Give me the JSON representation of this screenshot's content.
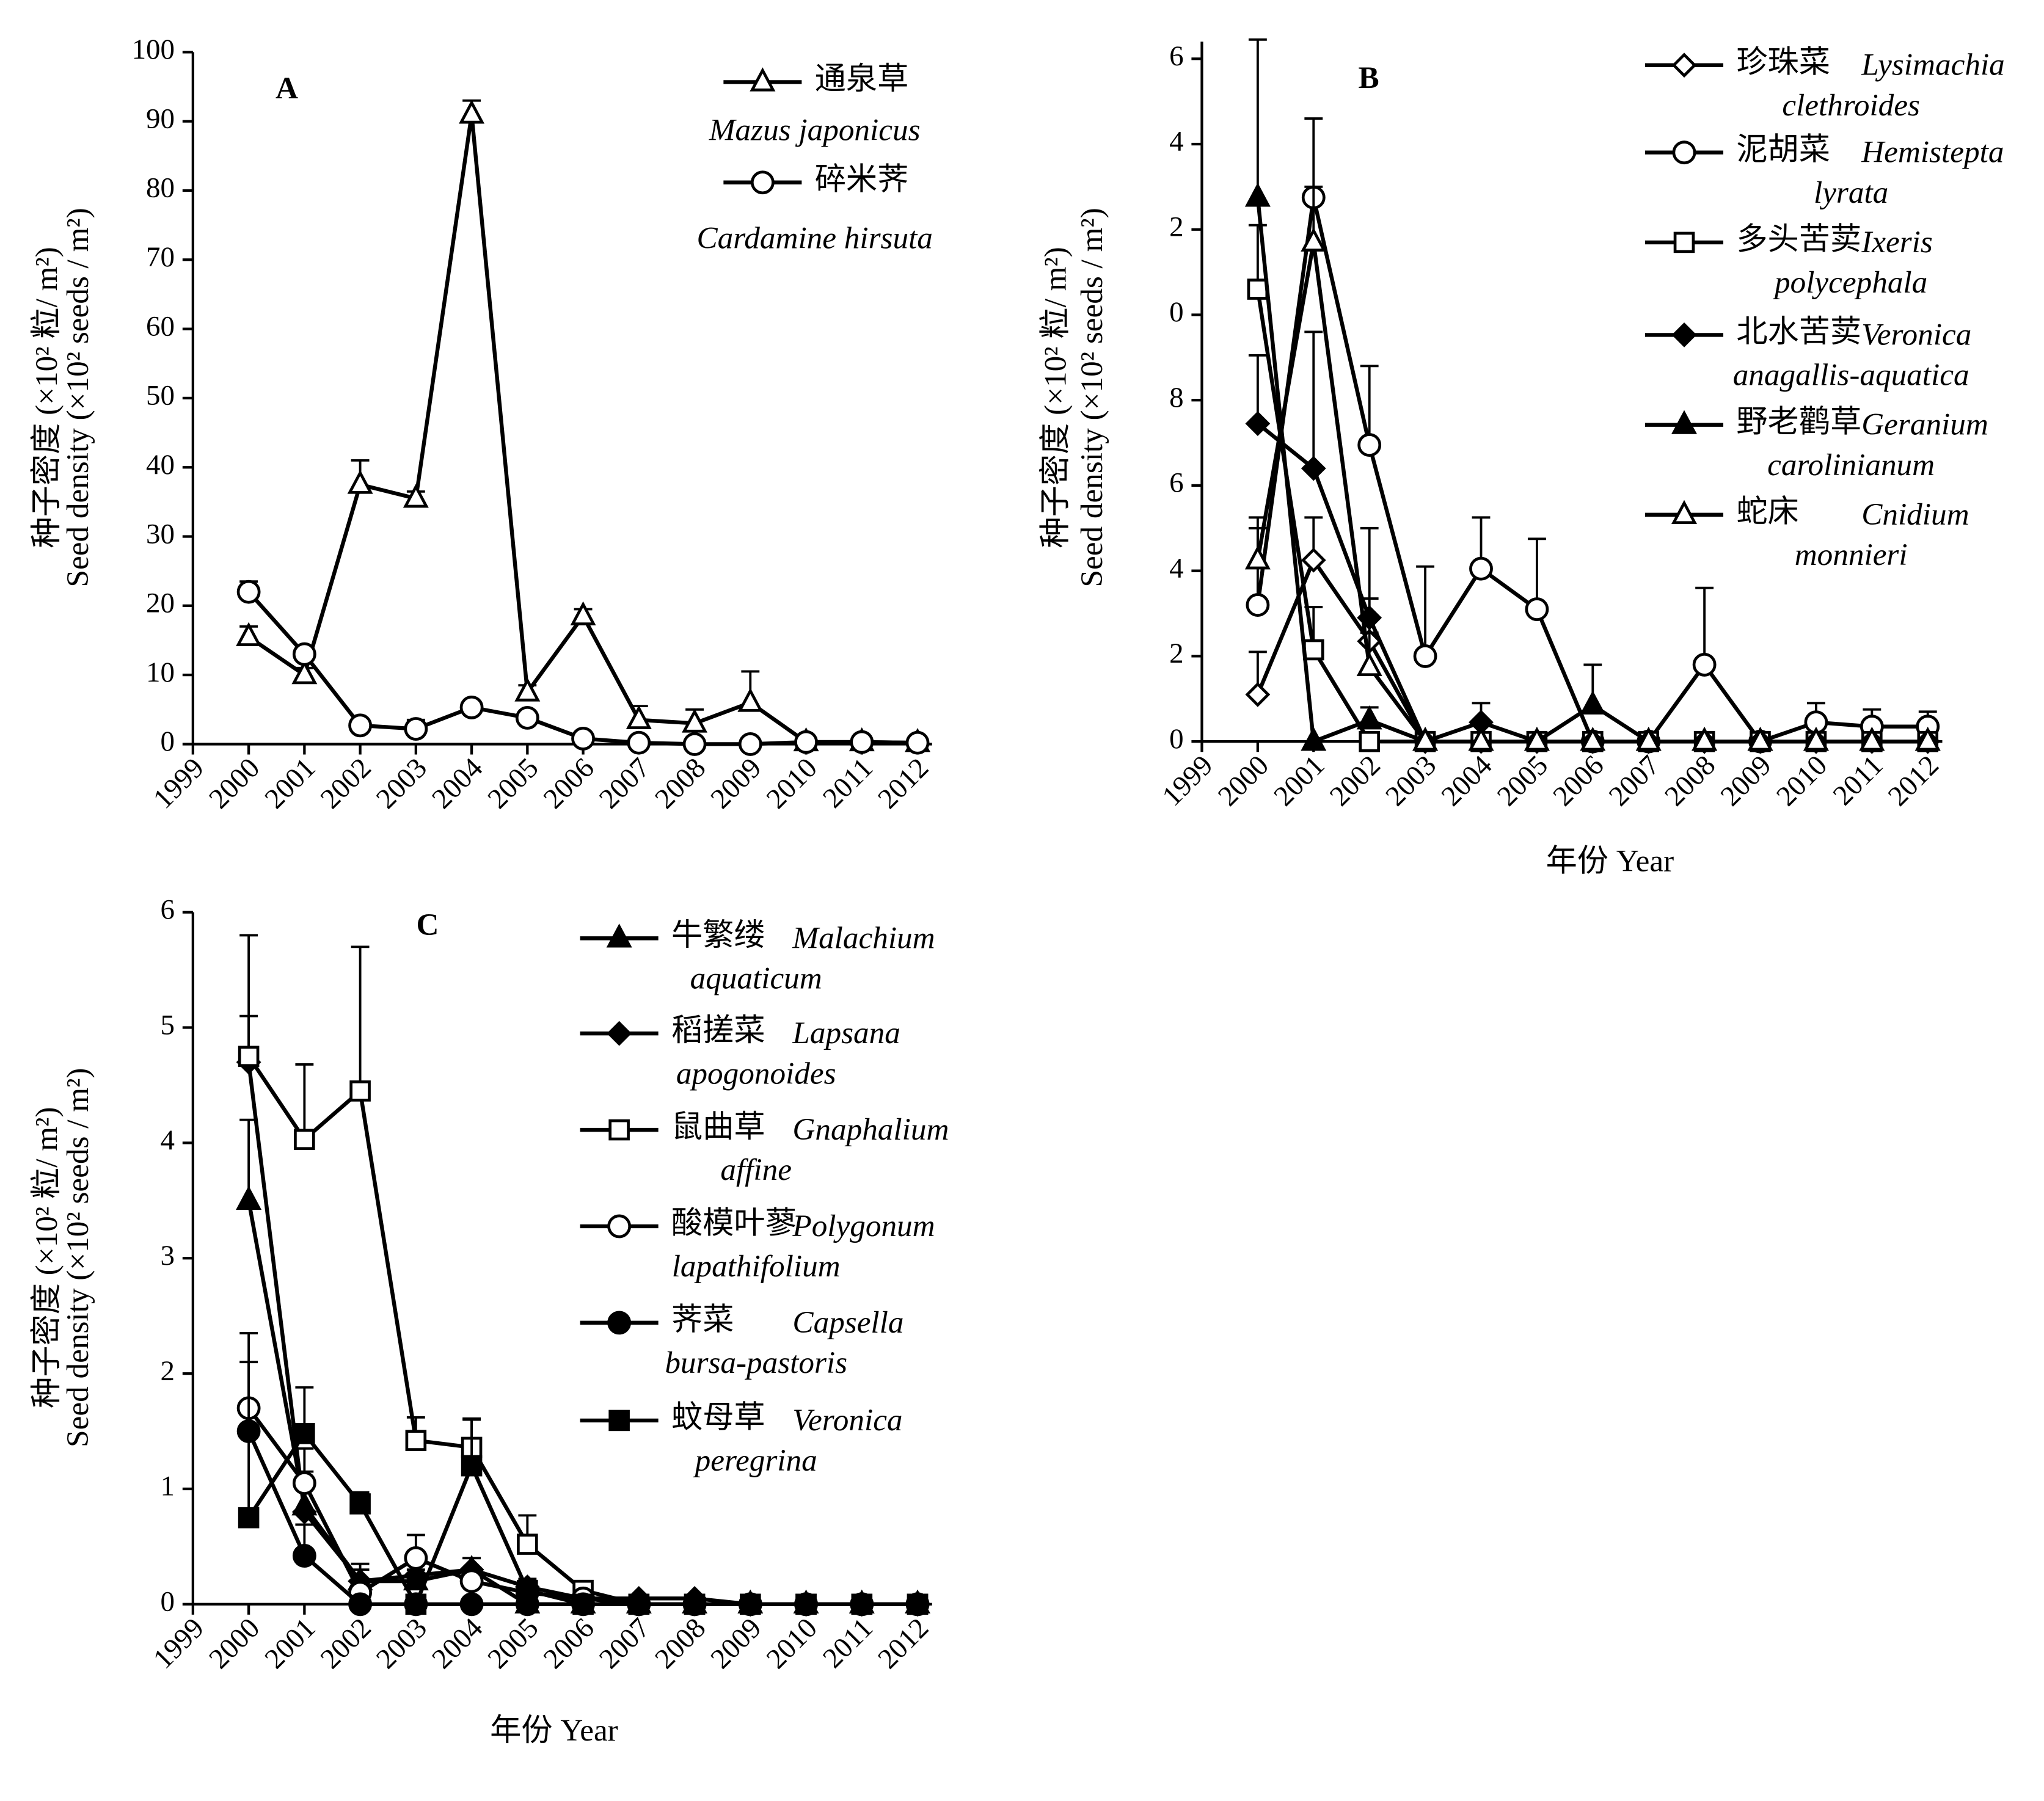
{
  "chart_data": [
    {
      "type": "line",
      "title": "A",
      "ylabel": [
        "种子密度 (×10² 粒/ m²)",
        "Seed density (×10² seeds / m²)"
      ],
      "x": [
        2000,
        2001,
        2002,
        2003,
        2004,
        2005,
        2006,
        2007,
        2008,
        2009,
        2010,
        2011,
        2012
      ],
      "xlim": [
        1999,
        2012.26
      ],
      "xticks": [
        1999,
        2000,
        2001,
        2002,
        2003,
        2004,
        2005,
        2006,
        2007,
        2008,
        2009,
        2010,
        2011,
        2012
      ],
      "ylim": [
        0,
        100
      ],
      "yticks": [
        0,
        10,
        20,
        30,
        40,
        50,
        60,
        70,
        80,
        90,
        100
      ],
      "series": [
        {
          "name": "通泉草",
          "latin": [
            "Mazus  japonicus"
          ],
          "color": "#000000",
          "marker": "triangle-open",
          "values": [
            15.5,
            10,
            37.5,
            35.5,
            91,
            7.5,
            18.5,
            3.5,
            3,
            6,
            0.3,
            0.3,
            0.2
          ],
          "errors": [
            1.5,
            1,
            3.5,
            1,
            2,
            1,
            1,
            2,
            2,
            4.5,
            0,
            0,
            0
          ]
        },
        {
          "name": "碎米荠",
          "latin": [
            "Cardamine hirsuta"
          ],
          "color": "#000000",
          "marker": "circle-open",
          "values": [
            22,
            13,
            2.7,
            2.2,
            5.3,
            3.8,
            0.8,
            0.2,
            0,
            0,
            0.3,
            0.3,
            0.2
          ],
          "errors": [
            1.5,
            1,
            0.5,
            1.3,
            0.5,
            0.5,
            0.3,
            0,
            0,
            0,
            0,
            0,
            0
          ]
        }
      ]
    },
    {
      "type": "line",
      "title": "B",
      "ylabel": [
        "种子密度 (×10² 粒/ m²)",
        "Seed density (×10² seeds / m²)"
      ],
      "xlabel": "年份 Year",
      "x": [
        2000,
        2001,
        2002,
        2003,
        2004,
        2005,
        2006,
        2007,
        2008,
        2009,
        2010,
        2011,
        2012
      ],
      "xlim": [
        1999,
        2012.26
      ],
      "xticks": [
        1999,
        2000,
        2001,
        2002,
        2003,
        2004,
        2005,
        2006,
        2007,
        2008,
        2009,
        2010,
        2011,
        2012
      ],
      "ylim": [
        0,
        16.4
      ],
      "yticks": [
        0,
        2,
        4,
        6,
        8,
        {
          "value": 10,
          "label": "0"
        },
        {
          "value": 12,
          "label": "2"
        },
        {
          "value": 14,
          "label": "4"
        },
        {
          "value": 16,
          "label": "6"
        }
      ],
      "series": [
        {
          "name": "珍珠菜",
          "latin": [
            "Lysimachia",
            "clethroides"
          ],
          "color": "#000000",
          "marker": "diamond-open",
          "values": [
            1.1,
            4.25,
            2.35,
            0,
            0,
            0,
            0,
            0,
            0,
            0,
            0,
            0,
            0
          ],
          "errors": [
            1,
            1,
            1,
            0,
            0,
            0,
            0,
            0,
            0,
            0,
            0,
            0,
            0
          ]
        },
        {
          "name": "泥胡菜",
          "latin": [
            "Hemistepta",
            "lyrata"
          ],
          "color": "#000000",
          "marker": "circle-open",
          "values": [
            3.2,
            12.75,
            6.95,
            2,
            4.05,
            3.1,
            0,
            0,
            1.8,
            0,
            0.45,
            0.35,
            0.35
          ],
          "errors": [
            1.8,
            1.85,
            1.85,
            2.1,
            1.2,
            1.65,
            0,
            0,
            1.8,
            0,
            0.45,
            0.4,
            0.35
          ]
        },
        {
          "name": "多头苦荬",
          "latin": [
            "Ixeris",
            "polycephala"
          ],
          "color": "#000000",
          "marker": "square-open",
          "values": [
            10.6,
            2.15,
            0,
            0,
            0,
            0,
            0,
            0,
            0,
            0,
            0,
            0,
            0
          ],
          "errors": [
            1.5,
            1,
            0,
            0,
            0,
            0,
            0,
            0,
            0,
            0,
            0,
            0,
            0
          ]
        },
        {
          "name": "北水苦荬",
          "latin": [
            "Veronica",
            "anagallis-aquatica"
          ],
          "color": "#000000",
          "marker": "diamond",
          "values": [
            7.45,
            6.4,
            2.9,
            0,
            0.45,
            0,
            0,
            0,
            0,
            0,
            0,
            0,
            0
          ],
          "errors": [
            1.6,
            3.2,
            2.1,
            0,
            0.45,
            0,
            0,
            0,
            0,
            0,
            0,
            0,
            0
          ]
        },
        {
          "name": "野老鹳草",
          "latin": [
            "Geranium",
            "carolinianum"
          ],
          "color": "#000000",
          "marker": "triangle",
          "values": [
            12.75,
            0,
            0.5,
            0,
            0,
            0,
            0.85,
            0,
            0,
            0,
            0,
            0,
            0
          ],
          "errors": [
            3.7,
            0,
            0.3,
            0,
            0,
            0,
            0.95,
            0,
            0,
            0,
            0,
            0,
            0
          ]
        },
        {
          "name": "蛇床",
          "latin": [
            "Cnidium",
            "monnieri"
          ],
          "color": "#000000",
          "marker": "triangle-open",
          "values": [
            4.25,
            11.7,
            1.75,
            0,
            0,
            0,
            0,
            0,
            0,
            0,
            0,
            0,
            0
          ],
          "errors": [
            1,
            1.3,
            0.8,
            0,
            0,
            0,
            0,
            0,
            0,
            0,
            0,
            0,
            0
          ]
        }
      ]
    },
    {
      "type": "line",
      "title": "C",
      "ylabel": [
        "种子密度 (×10² 粒/ m²)",
        "Seed density (×10² seeds / m²)"
      ],
      "xlabel": "年份 Year",
      "x": [
        2000,
        2001,
        2002,
        2003,
        2004,
        2005,
        2006,
        2007,
        2008,
        2009,
        2010,
        2011,
        2012
      ],
      "xlim": [
        1999,
        2012.26
      ],
      "xticks": [
        1999,
        2000,
        2001,
        2002,
        2003,
        2004,
        2005,
        2006,
        2007,
        2008,
        2009,
        2010,
        2011,
        2012
      ],
      "ylim": [
        0,
        6
      ],
      "yticks": [
        0,
        1,
        2,
        3,
        4,
        5,
        6
      ],
      "series": [
        {
          "name": "牛繁缕",
          "latin": [
            "Malachium",
            "aquaticum"
          ],
          "color": "#000000",
          "marker": "triangle",
          "values": [
            3.5,
            0.85,
            0.2,
            0.2,
            0.3,
            0,
            0,
            0,
            0,
            0,
            0,
            0,
            0
          ],
          "errors": [
            0.7,
            0.3,
            0.1,
            0.1,
            0.1,
            0,
            0,
            0,
            0,
            0,
            0,
            0,
            0
          ]
        },
        {
          "name": "稻搓菜",
          "latin": [
            "Lapsana",
            "apogonoides"
          ],
          "color": "#000000",
          "marker": "diamond",
          "values": [
            4.7,
            0.8,
            0.2,
            0.25,
            0.3,
            0.15,
            0.05,
            0.05,
            0.05,
            0,
            0,
            0,
            0
          ],
          "errors": [
            0.4,
            0.2,
            0.15,
            0.1,
            0.1,
            0.05,
            0,
            0,
            0,
            0,
            0,
            0,
            0
          ]
        },
        {
          "name": "鼠曲草",
          "latin": [
            "Gnaphalium",
            "affine"
          ],
          "color": "#000000",
          "marker": "square-open",
          "values": [
            4.75,
            4.03,
            4.45,
            1.42,
            1.36,
            0.52,
            0.12,
            0,
            0,
            0,
            0,
            0,
            0
          ],
          "errors": [
            1.05,
            0.65,
            1.25,
            0.2,
            0.25,
            0.25,
            0.05,
            0,
            0,
            0,
            0,
            0,
            0
          ]
        },
        {
          "name": "酸模叶蓼",
          "latin": [
            "Polygonum",
            "lapathifolium"
          ],
          "color": "#000000",
          "marker": "circle-open",
          "values": [
            1.7,
            1.05,
            0.1,
            0.4,
            0.2,
            0.1,
            0.05,
            0,
            0,
            0,
            0,
            0,
            0
          ],
          "errors": [
            0.65,
            0.3,
            0.1,
            0.2,
            0.1,
            0.05,
            0,
            0,
            0,
            0,
            0,
            0,
            0
          ]
        },
        {
          "name": "荠菜",
          "latin": [
            "Capsella",
            "bursa-pastoris"
          ],
          "color": "#000000",
          "marker": "circle",
          "values": [
            1.5,
            0.42,
            0,
            0,
            0,
            0,
            0,
            0,
            0,
            0,
            0,
            0,
            0
          ],
          "errors": [
            0.6,
            0.27,
            0,
            0,
            0,
            0,
            0,
            0,
            0,
            0,
            0,
            0,
            0
          ]
        },
        {
          "name": "蚊母草",
          "latin": [
            "Veronica",
            "peregrina"
          ],
          "color": "#000000",
          "marker": "square",
          "values": [
            0.75,
            1.48,
            0.87,
            0,
            1.2,
            0.12,
            0,
            0,
            0,
            0,
            0,
            0,
            0
          ],
          "errors": [
            0.7,
            0.4,
            0.1,
            0,
            0.4,
            0.1,
            0,
            0,
            0,
            0,
            0,
            0,
            0
          ]
        }
      ]
    }
  ]
}
